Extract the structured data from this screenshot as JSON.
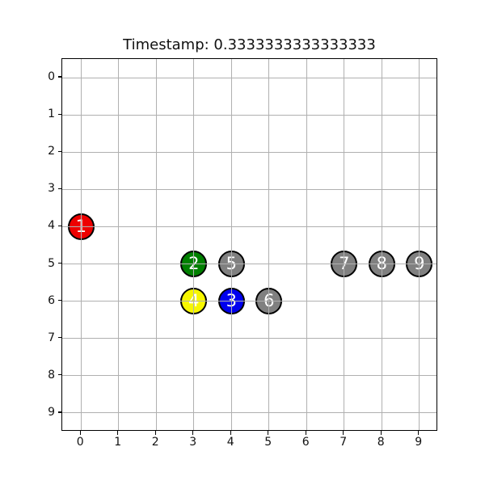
{
  "chart_data": {
    "type": "scatter",
    "title": "Timestamp: 0.3333333333333333",
    "xlabel": "",
    "ylabel": "",
    "xlim": [
      -0.5,
      9.5
    ],
    "ylim": [
      -0.5,
      9.5
    ],
    "y_axis_inverted": true,
    "grid": true,
    "legend": false,
    "x_ticks": [
      "0",
      "1",
      "2",
      "3",
      "4",
      "5",
      "6",
      "7",
      "8",
      "9"
    ],
    "y_ticks": [
      "0",
      "1",
      "2",
      "3",
      "4",
      "5",
      "6",
      "7",
      "8",
      "9"
    ],
    "points": [
      {
        "label": "1",
        "x": 0,
        "y": 4,
        "color": "#ee0000"
      },
      {
        "label": "2",
        "x": 3,
        "y": 5,
        "color": "#008000"
      },
      {
        "label": "3",
        "x": 4,
        "y": 6,
        "color": "#0000ee"
      },
      {
        "label": "4",
        "x": 3,
        "y": 6,
        "color": "#f7f700"
      },
      {
        "label": "5",
        "x": 4,
        "y": 5,
        "color": "#808080"
      },
      {
        "label": "6",
        "x": 5,
        "y": 6,
        "color": "#808080"
      },
      {
        "label": "7",
        "x": 7,
        "y": 5,
        "color": "#808080"
      },
      {
        "label": "8",
        "x": 8,
        "y": 5,
        "color": "#808080"
      },
      {
        "label": "9",
        "x": 9,
        "y": 5,
        "color": "#808080"
      }
    ],
    "marker_diameter_px": 33,
    "marker_edge_color": "#000000",
    "marker_label_color": "#ffffff",
    "grid_color": "#b0b0b0",
    "axis_color": "#000000",
    "background_color": "#ffffff"
  }
}
